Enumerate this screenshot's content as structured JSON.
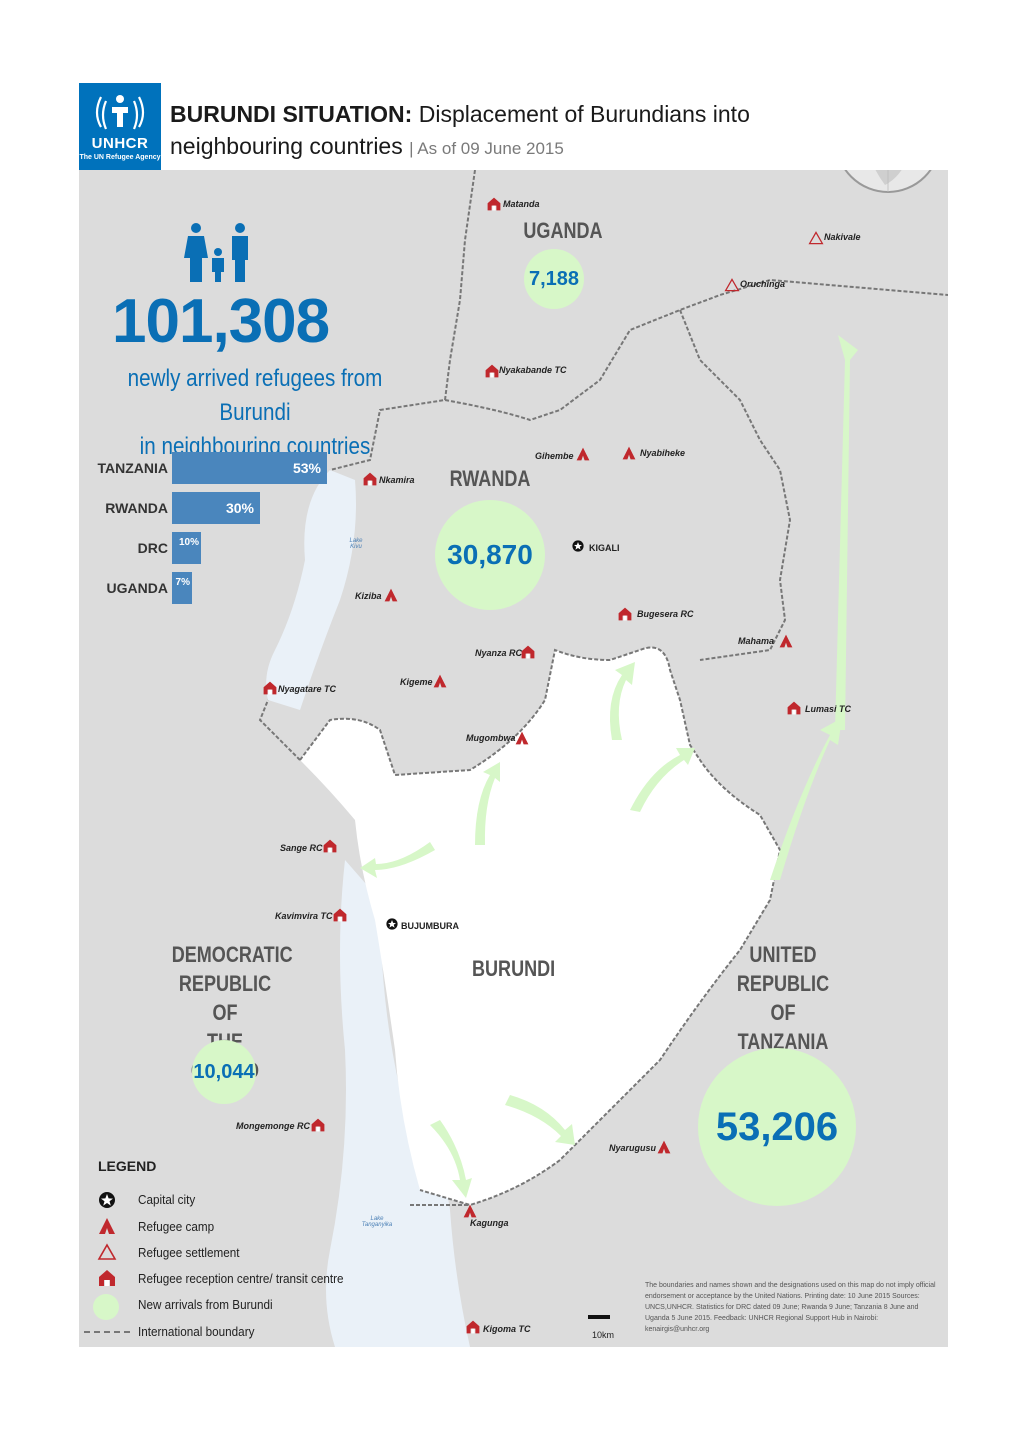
{
  "header": {
    "logo_wordmark": "UNHCR",
    "logo_sub": "The UN Refugee Agency",
    "title_bold": "BURUNDI SITUATION:",
    "title_rest": " Displacement of Burundians into",
    "title_line2": "neighbouring countries",
    "date": "| As of 09 June 2015"
  },
  "summary": {
    "total": "101,308",
    "subtitle_line1": "newly arrived refugees from Burundi",
    "subtitle_line2": "in neighbouring countries"
  },
  "chart_data": {
    "type": "bar",
    "orientation": "horizontal",
    "categories": [
      "TANZANIA",
      "RWANDA",
      "DRC",
      "UGANDA"
    ],
    "values": [
      53,
      30,
      10,
      7
    ],
    "value_labels": [
      "53%",
      "30%",
      "10%",
      "7%"
    ]
  },
  "countries": {
    "uganda": "UGANDA",
    "rwanda": "RWANDA",
    "burundi": "BURUNDI",
    "drc_1": "DEMOCRATIC",
    "drc_2": "REPUBLIC OF",
    "drc_3": "THE CONGO",
    "tz_1": "UNITED",
    "tz_2": "REPUBLIC OF",
    "tz_3": "TANZANIA"
  },
  "arrivals": {
    "uganda": "7,188",
    "rwanda": "30,870",
    "drc": "10,044",
    "tanzania": "53,206"
  },
  "places": {
    "matanda": "Matanda",
    "nakivale": "Nakivale",
    "oruchinga": "Oruchinga",
    "nyakabande": "Nyakabande TC",
    "gihembe": "Gihembe",
    "nyabiheke": "Nyabiheke",
    "nkamira": "Nkamira",
    "kigali": "KIGALI",
    "kiziba": "Kiziba",
    "bugesera": "Bugesera RC",
    "nyanza": "Nyanza RC",
    "mahama": "Mahama",
    "kigeme": "Kigeme",
    "nyagatare": "Nyagatare TC",
    "mugombwa": "Mugombwa",
    "lumasi": "Lumasi TC",
    "sange": "Sange RC",
    "kavimvira": "Kavimvira TC",
    "bujumbura": "BUJUMBURA",
    "mongemonge": "Mongemonge RC",
    "nyarugusu": "Nyarugusu",
    "kagunga": "Kagunga",
    "kigoma": "Kigoma TC",
    "lake_kivu": "Lake Kivu",
    "lake_tanganyika": "Lake Tanganyika"
  },
  "legend": {
    "title": "LEGEND",
    "capital": "Capital city",
    "camp": "Refugee camp",
    "settlement": "Refugee settlement",
    "reception": "Refugee reception centre/ transit centre",
    "arrivals": "New arrivals from Burundi",
    "boundary": "International boundary"
  },
  "scale": "10km",
  "disclaimer": "The boundaries and names shown and the designations used on this map do not imply official endorsement or acceptance by the United Nations.  Printing date: 10 June 2015  Sources: UNCS,UNHCR. Statistics for DRC dated 09 June; Rwanda 9 June; Tanzania 8 June and Uganda 5 June 2015. Feedback: UNHCR Regional Support Hub in Nairobi: kenairgis@unhcr.org",
  "colors": {
    "unhcr_blue": "#0072BC",
    "bar_blue": "#4a86bd",
    "arrival_green": "#d7f7c8",
    "camp_red": "#c0282d",
    "land_grey": "#dcdcdc"
  }
}
